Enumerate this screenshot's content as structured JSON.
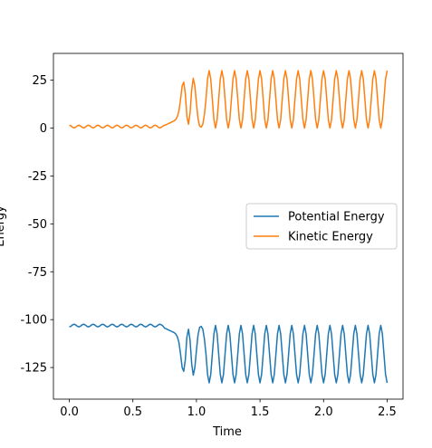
{
  "chart_data": {
    "type": "line",
    "x_label": "Time",
    "y_label": "Energy",
    "xlim": [
      -0.125,
      2.625
    ],
    "ylim": [
      -141.5,
      39
    ],
    "xticks": [
      {
        "value": 0,
        "label": "0.0"
      },
      {
        "value": 0.5,
        "label": "0.5"
      },
      {
        "value": 1,
        "label": "1.0"
      },
      {
        "value": 1.5,
        "label": "1.5"
      },
      {
        "value": 2,
        "label": "2.0"
      },
      {
        "value": 2.5,
        "label": "2.5"
      }
    ],
    "yticks": [
      -125,
      -100,
      -75,
      -50,
      -25,
      0,
      25
    ],
    "legend": "center right",
    "x": [
      0,
      0.0125,
      0.025,
      0.0375,
      0.05,
      0.0625,
      0.075,
      0.0875,
      0.1,
      0.1125,
      0.125,
      0.1375,
      0.15,
      0.1625,
      0.175,
      0.1875,
      0.2,
      0.2125,
      0.225,
      0.2375,
      0.25,
      0.2625,
      0.275,
      0.2875,
      0.3,
      0.3125,
      0.325,
      0.3375,
      0.35,
      0.3625,
      0.375,
      0.3875,
      0.4,
      0.4125,
      0.425,
      0.4375,
      0.45,
      0.4625,
      0.475,
      0.4875,
      0.5,
      0.5125,
      0.525,
      0.5375,
      0.55,
      0.5625,
      0.575,
      0.5875,
      0.6,
      0.6125,
      0.625,
      0.6375,
      0.65,
      0.6625,
      0.675,
      0.6875,
      0.7,
      0.7125,
      0.725,
      0.7375,
      0.75,
      0.7625,
      0.775,
      0.7875,
      0.8,
      0.8125,
      0.825,
      0.8375,
      0.85,
      0.8625,
      0.875,
      0.8875,
      0.9,
      0.9125,
      0.925,
      0.9375,
      0.95,
      0.9625,
      0.975,
      0.9875,
      1,
      1.0125,
      1.025,
      1.0375,
      1.05,
      1.0625,
      1.075,
      1.0875,
      1.1,
      1.1125,
      1.125,
      1.1375,
      1.15,
      1.1625,
      1.175,
      1.1875,
      1.2,
      1.2125,
      1.225,
      1.2375,
      1.25,
      1.2625,
      1.275,
      1.2875,
      1.3,
      1.3125,
      1.325,
      1.3375,
      1.35,
      1.3625,
      1.375,
      1.3875,
      1.4,
      1.4125,
      1.425,
      1.4375,
      1.45,
      1.4625,
      1.475,
      1.4875,
      1.5,
      1.5125,
      1.525,
      1.5375,
      1.55,
      1.5625,
      1.575,
      1.5875,
      1.6,
      1.6125,
      1.625,
      1.6375,
      1.65,
      1.6625,
      1.675,
      1.6875,
      1.7,
      1.7125,
      1.725,
      1.7375,
      1.75,
      1.7625,
      1.775,
      1.7875,
      1.8,
      1.8125,
      1.825,
      1.8375,
      1.85,
      1.8625,
      1.875,
      1.8875,
      1.9,
      1.9125,
      1.925,
      1.9375,
      1.95,
      1.9625,
      1.975,
      1.9875,
      2,
      2.0125,
      2.025,
      2.0375,
      2.05,
      2.0625,
      2.075,
      2.0875,
      2.1,
      2.1125,
      2.125,
      2.1375,
      2.15,
      2.1625,
      2.175,
      2.1875,
      2.2,
      2.2125,
      2.225,
      2.2375,
      2.25,
      2.2625,
      2.275,
      2.2875,
      2.3,
      2.3125,
      2.325,
      2.3375,
      2.35,
      2.3625,
      2.375,
      2.3875,
      2.4,
      2.4125,
      2.425,
      2.4375,
      2.45,
      2.4625,
      2.475,
      2.4875,
      2.5
    ],
    "series": [
      {
        "name": "Potential Energy",
        "color": "#1f77b4",
        "values": [
          -103.8,
          -103.45,
          -102.75,
          -102.4,
          -102.75,
          -103.45,
          -103.8,
          -103.45,
          -102.75,
          -102.4,
          -102.75,
          -103.45,
          -103.8,
          -103.45,
          -102.75,
          -102.4,
          -102.75,
          -103.45,
          -103.8,
          -103.45,
          -102.75,
          -102.4,
          -102.75,
          -103.45,
          -103.8,
          -103.45,
          -102.75,
          -102.4,
          -102.75,
          -103.45,
          -103.8,
          -103.45,
          -102.75,
          -102.4,
          -102.75,
          -103.45,
          -103.8,
          -103.45,
          -102.75,
          -102.4,
          -102.75,
          -103.45,
          -103.8,
          -103.45,
          -102.75,
          -102.4,
          -102.75,
          -103.45,
          -103.8,
          -103.45,
          -102.75,
          -102.4,
          -102.75,
          -103.45,
          -103.8,
          -103.45,
          -102.75,
          -102.4,
          -102.75,
          -103.45,
          -104.5,
          -104.8,
          -105.2,
          -105.6,
          -106,
          -106.4,
          -106.8,
          -107.5,
          -109,
          -112,
          -118,
          -125,
          -127,
          -121,
          -109,
          -105,
          -111,
          -123,
          -129,
          -125,
          -116,
          -108,
          -104,
          -103.5,
          -105,
          -110,
          -118,
          -128.6,
          -133,
          -128.6,
          -118,
          -107.4,
          -103,
          -107.4,
          -118,
          -128.6,
          -133,
          -128.6,
          -118,
          -107.4,
          -103,
          -107.4,
          -118,
          -128.6,
          -133,
          -128.6,
          -118,
          -107.4,
          -103,
          -107.4,
          -118,
          -128.6,
          -133,
          -128.6,
          -118,
          -107.4,
          -103,
          -107.4,
          -118,
          -128.6,
          -133,
          -128.6,
          -118,
          -107.4,
          -103,
          -107.4,
          -118,
          -128.6,
          -133,
          -128.6,
          -118,
          -107.4,
          -103,
          -107.4,
          -118,
          -128.6,
          -133,
          -128.6,
          -118,
          -107.4,
          -103,
          -107.4,
          -118,
          -128.6,
          -133,
          -128.6,
          -118,
          -107.4,
          -103,
          -107.4,
          -118,
          -128.6,
          -133,
          -128.6,
          -118,
          -107.4,
          -103,
          -107.4,
          -118,
          -128.6,
          -133,
          -128.6,
          -118,
          -107.4,
          -103,
          -107.4,
          -118,
          -128.6,
          -133,
          -128.6,
          -118,
          -107.4,
          -103,
          -107.4,
          -118,
          -128.6,
          -133,
          -128.6,
          -118,
          -107.4,
          -103,
          -107.4,
          -118,
          -128.6,
          -133,
          -128.6,
          -118,
          -107.4,
          -103,
          -107.4,
          -118,
          -128.6,
          -133,
          -128.6,
          -118,
          -107.4,
          -103,
          -107.4,
          -118,
          -128.6,
          -133
        ]
      },
      {
        "name": "Kinetic Energy",
        "color": "#ff7f0e",
        "values": [
          1.5,
          1.15,
          0.45,
          0.1,
          0.45,
          1.15,
          1.5,
          1.15,
          0.45,
          0.1,
          0.45,
          1.15,
          1.5,
          1.15,
          0.45,
          0.1,
          0.45,
          1.15,
          1.5,
          1.15,
          0.45,
          0.1,
          0.45,
          1.15,
          1.5,
          1.15,
          0.45,
          0.1,
          0.45,
          1.15,
          1.5,
          1.15,
          0.45,
          0.1,
          0.45,
          1.15,
          1.5,
          1.15,
          0.45,
          0.1,
          0.45,
          1.15,
          1.5,
          1.15,
          0.45,
          0.1,
          0.45,
          1.15,
          1.5,
          1.15,
          0.45,
          0.1,
          0.45,
          1.15,
          1.5,
          1.15,
          0.45,
          0.1,
          0.45,
          1.15,
          1.5,
          1.8,
          2.2,
          2.6,
          3,
          3.4,
          3.8,
          4.5,
          6,
          9,
          15,
          22,
          24,
          18,
          6,
          2,
          8,
          20,
          26,
          22,
          13,
          5,
          1,
          0.5,
          2,
          7,
          15,
          25.6,
          30,
          25.6,
          15,
          4.4,
          0,
          4.4,
          15,
          25.6,
          30,
          25.6,
          15,
          4.4,
          0,
          4.4,
          15,
          25.6,
          30,
          25.6,
          15,
          4.4,
          0,
          4.4,
          15,
          25.6,
          30,
          25.6,
          15,
          4.4,
          0,
          4.4,
          15,
          25.6,
          30,
          25.6,
          15,
          4.4,
          0,
          4.4,
          15,
          25.6,
          30,
          25.6,
          15,
          4.4,
          0,
          4.4,
          15,
          25.6,
          30,
          25.6,
          15,
          4.4,
          0,
          4.4,
          15,
          25.6,
          30,
          25.6,
          15,
          4.4,
          0,
          4.4,
          15,
          25.6,
          30,
          25.6,
          15,
          4.4,
          0,
          4.4,
          15,
          25.6,
          30,
          25.6,
          15,
          4.4,
          0,
          4.4,
          15,
          25.6,
          30,
          25.6,
          15,
          4.4,
          0,
          4.4,
          15,
          25.6,
          30,
          25.6,
          15,
          4.4,
          0,
          4.4,
          15,
          25.6,
          30,
          25.6,
          15,
          4.4,
          0,
          4.4,
          15,
          25.6,
          30,
          25.6,
          15,
          4.4,
          0,
          4.4,
          15,
          25.6,
          30
        ]
      }
    ]
  }
}
